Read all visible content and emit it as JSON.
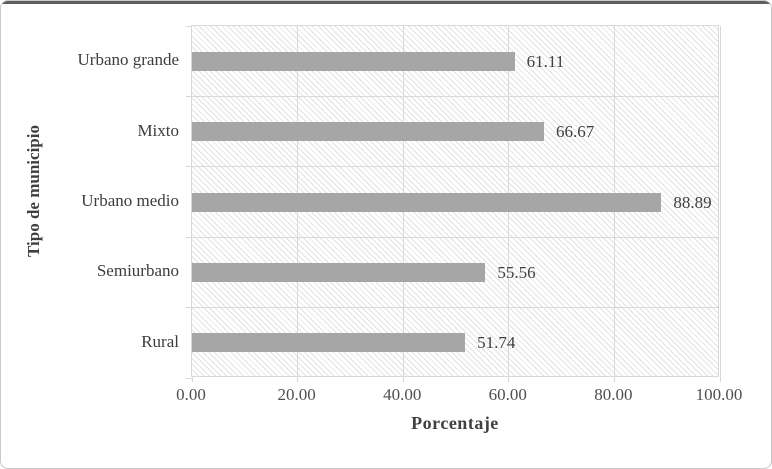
{
  "chart_data": {
    "type": "bar",
    "orientation": "horizontal",
    "categories": [
      "Urbano grande",
      "Mixto",
      "Urbano medio",
      "Semiurbano",
      "Rural"
    ],
    "values": [
      61.11,
      66.67,
      88.89,
      55.56,
      51.74
    ],
    "value_labels": [
      "61.11",
      "66.67",
      "88.89",
      "55.56",
      "51.74"
    ],
    "title": "",
    "xlabel": "Porcentaje",
    "ylabel": "Tipo de municipio",
    "xlim": [
      0,
      100
    ],
    "xticks": [
      0,
      20,
      40,
      60,
      80,
      100
    ],
    "xtick_labels": [
      "0.00",
      "20.00",
      "40.00",
      "60.00",
      "80.00",
      "100.00"
    ],
    "grid": "on",
    "legend": "none",
    "plot_background": "light-downward-diagonal-hatch",
    "colors": {
      "bar": "#a6a6a6",
      "grid": "#d9d9d9",
      "hatch_line": "#e2e2e2",
      "label_text": "#404040",
      "tick_text": "#4f4f4f",
      "figure_border": "#c9c9c9",
      "top_rule": "#5f5f5f"
    }
  }
}
